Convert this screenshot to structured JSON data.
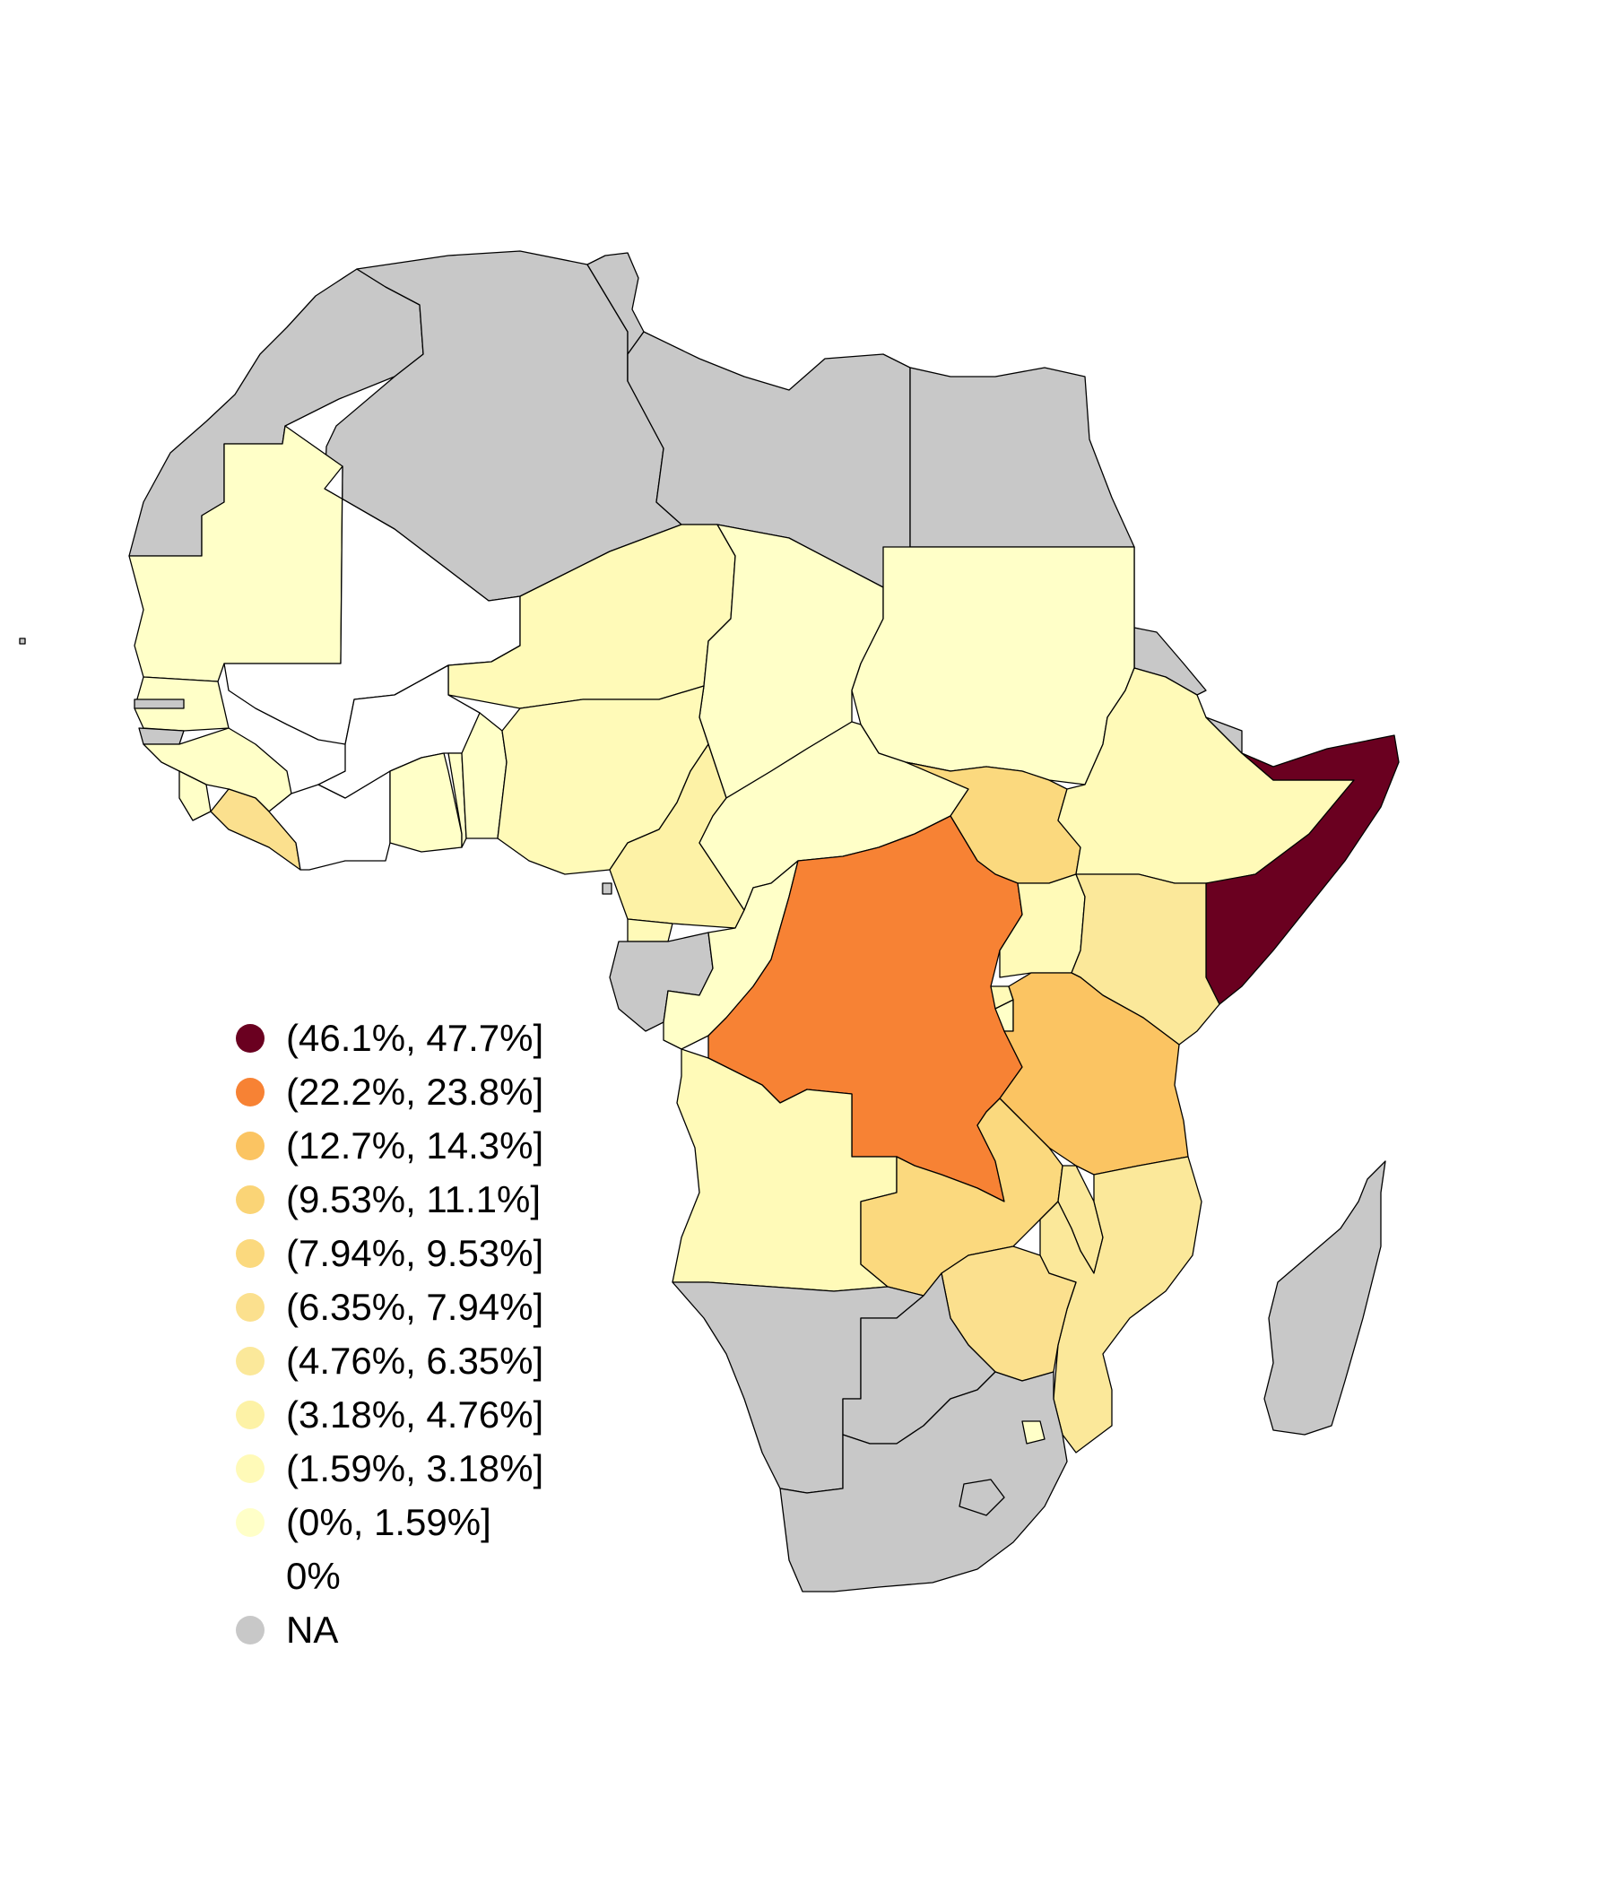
{
  "colors": {
    "na": "#c8c8c8",
    "zero": "#ffffff",
    "c_0_159": "#ffffc8",
    "c_159_318": "#fffab8",
    "c_318_476": "#fdf2a6",
    "c_476_635": "#fbe89a",
    "c_635_794": "#fbe08e",
    "c_794_953": "#fbd97e",
    "c_953_111": "#fad476",
    "c_127_143": "#fbc462",
    "c_222_238": "#f78234",
    "c_461_477": "#6a0020"
  },
  "legend": {
    "items": [
      {
        "label": "(46.1%, 47.7%]",
        "color": "#6a0020"
      },
      {
        "label": "(22.2%, 23.8%]",
        "color": "#f78234"
      },
      {
        "label": "(12.7%, 14.3%]",
        "color": "#fbc462"
      },
      {
        "label": "(9.53%, 11.1%]",
        "color": "#fad476"
      },
      {
        "label": "(7.94%, 9.53%]",
        "color": "#fbd97e"
      },
      {
        "label": "(6.35%, 7.94%]",
        "color": "#fbe08e"
      },
      {
        "label": "(4.76%, 6.35%]",
        "color": "#fbe89a"
      },
      {
        "label": "(3.18%, 4.76%]",
        "color": "#fdf2a6"
      },
      {
        "label": "(1.59%, 3.18%]",
        "color": "#fffab8"
      },
      {
        "label": "(0%, 1.59%]",
        "color": "#ffffc8"
      },
      {
        "label": "0%",
        "color": "#ffffff"
      },
      {
        "label": "NA",
        "color": "#c8c8c8"
      }
    ]
  }
}
